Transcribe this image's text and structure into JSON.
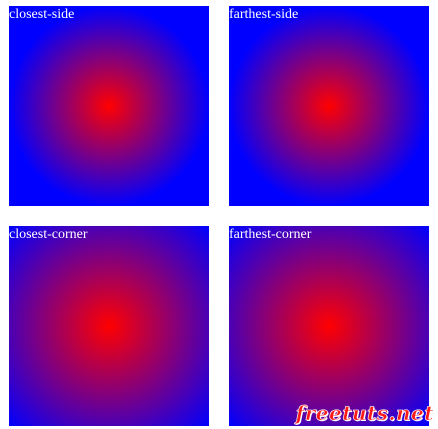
{
  "boxes": [
    {
      "label": "closest-side"
    },
    {
      "label": "farthest-side"
    },
    {
      "label": "closest-corner"
    },
    {
      "label": "farthest-corner"
    }
  ],
  "watermark": {
    "text": "freetuts.net"
  },
  "colors": {
    "center": "#ff0000",
    "edge": "#0000ff",
    "label": "#ffffff",
    "watermark": "#ff1a1a"
  }
}
